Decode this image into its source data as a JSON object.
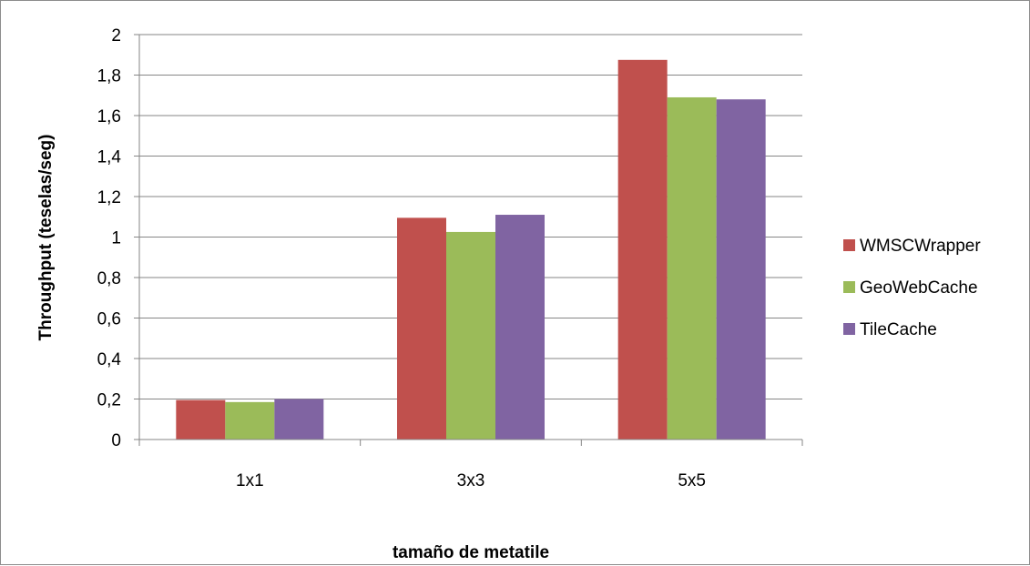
{
  "chart_data": {
    "type": "bar",
    "title": "",
    "xlabel": "tamaño de metatile",
    "ylabel": "Throughput (teselas/seg)",
    "categories": [
      "1x1",
      "3x3",
      "5x5"
    ],
    "ylim": [
      0,
      2
    ],
    "yticks": [
      "0",
      "0,2",
      "0,4",
      "0,6",
      "0,8",
      "1",
      "1,2",
      "1,4",
      "1,6",
      "1,8",
      "2"
    ],
    "grid": true,
    "legend_position": "right",
    "series": [
      {
        "name": "WMSCWrapper",
        "color": "#c0504d",
        "values": [
          0.195,
          1.095,
          1.875
        ]
      },
      {
        "name": "GeoWebCache",
        "color": "#9bbb59",
        "values": [
          0.185,
          1.025,
          1.69
        ]
      },
      {
        "name": "TileCache",
        "color": "#8064a2",
        "values": [
          0.2,
          1.11,
          1.68
        ]
      }
    ]
  }
}
